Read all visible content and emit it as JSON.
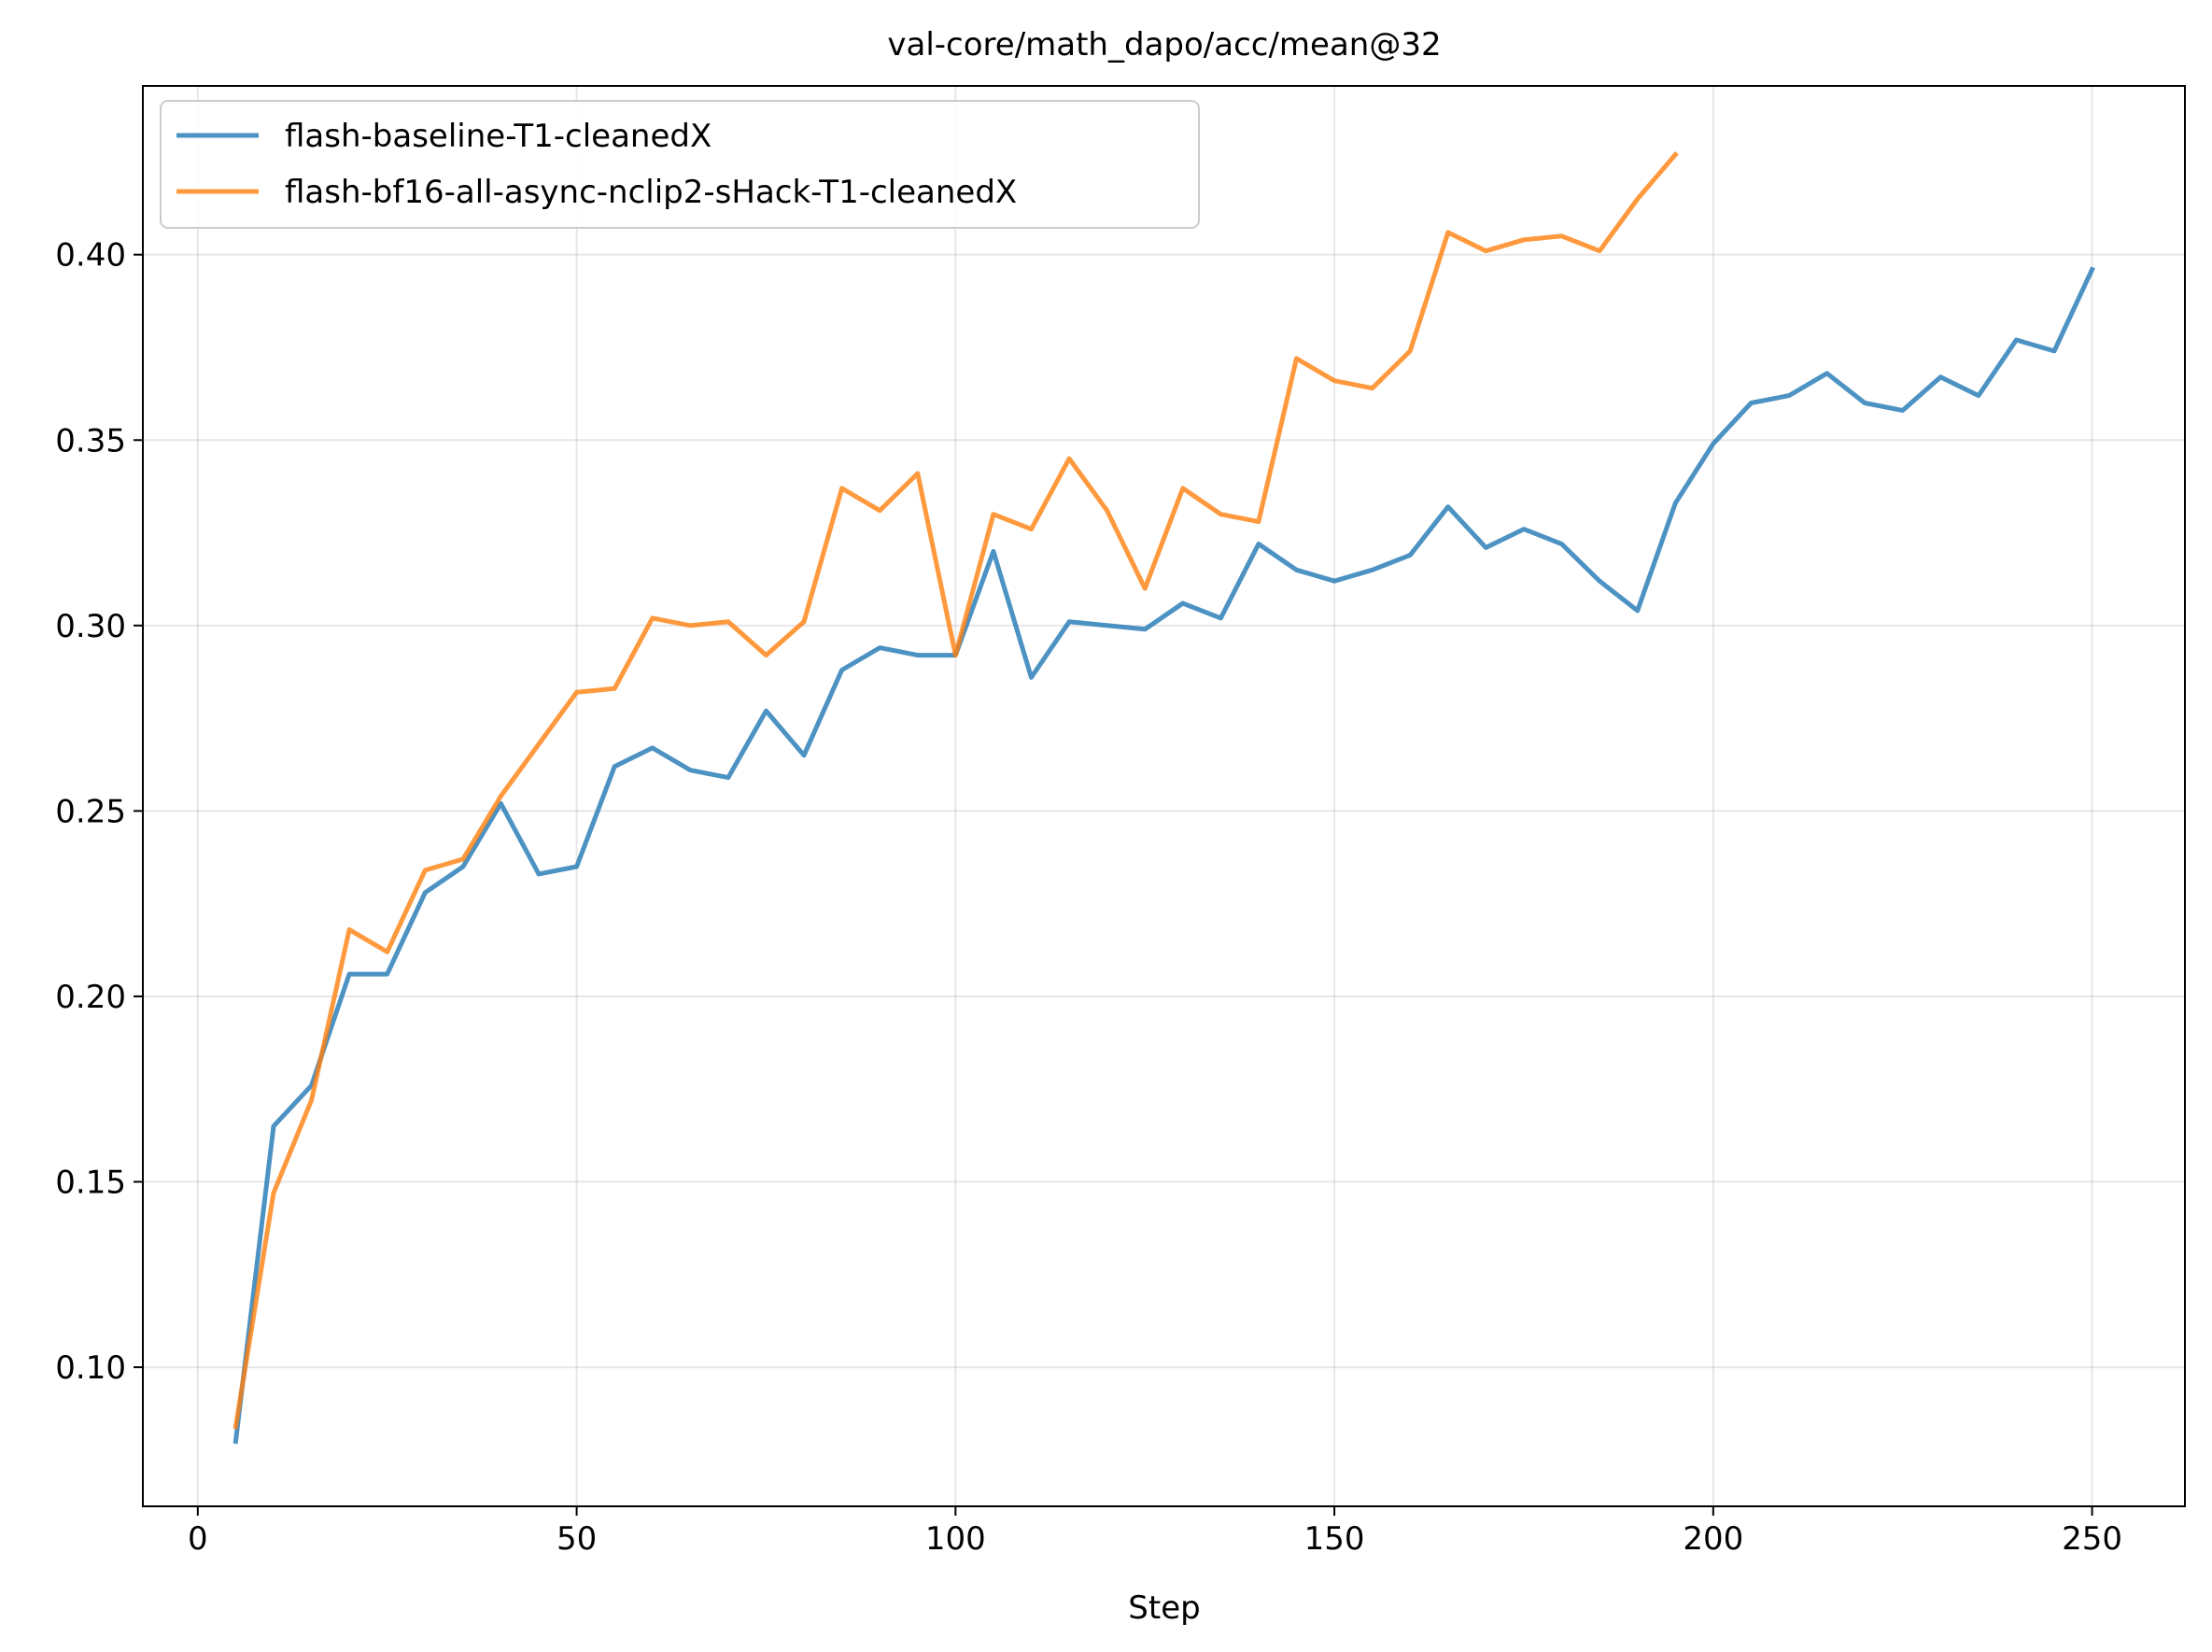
{
  "chart_data": {
    "type": "line",
    "title": "val-core/math_dapo/acc/mean@32",
    "xlabel": "Step",
    "ylabel": "",
    "xlim": [
      -7.25,
      262.25
    ],
    "ylim": [
      0.0625,
      0.4455
    ],
    "xticks": [
      0,
      50,
      100,
      150,
      200,
      250
    ],
    "xtick_labels": [
      "0",
      "50",
      "100",
      "150",
      "200",
      "250"
    ],
    "yticks": [
      0.1,
      0.15,
      0.2,
      0.25,
      0.3,
      0.35,
      0.4
    ],
    "ytick_labels": [
      "0.10",
      "0.15",
      "0.20",
      "0.25",
      "0.30",
      "0.35",
      "0.40"
    ],
    "grid": true,
    "legend_position": "top-left",
    "series": [
      {
        "name": "flash-baseline-T1-cleanedX",
        "color": "#1f77b4",
        "x": [
          5,
          10,
          15,
          20,
          25,
          30,
          35,
          40,
          45,
          50,
          55,
          60,
          65,
          70,
          75,
          80,
          85,
          90,
          95,
          100,
          105,
          110,
          115,
          120,
          125,
          130,
          135,
          140,
          145,
          150,
          155,
          160,
          165,
          170,
          175,
          180,
          185,
          190,
          195,
          200,
          205,
          210,
          215,
          220,
          225,
          230,
          235,
          240,
          245,
          250
        ],
        "y": [
          0.08,
          0.165,
          0.176,
          0.206,
          0.206,
          0.228,
          0.235,
          0.252,
          0.233,
          0.235,
          0.262,
          0.267,
          0.261,
          0.259,
          0.277,
          0.265,
          0.288,
          0.294,
          0.292,
          0.292,
          0.32,
          0.286,
          0.301,
          0.3,
          0.299,
          0.306,
          0.302,
          0.322,
          0.315,
          0.312,
          0.315,
          0.319,
          0.332,
          0.321,
          0.326,
          0.322,
          0.312,
          0.304,
          0.333,
          0.349,
          0.36,
          0.362,
          0.368,
          0.36,
          0.358,
          0.367,
          0.362,
          0.377,
          0.374,
          0.396
        ]
      },
      {
        "name": "flash-bf16-all-async-nclip2-sHack-T1-cleanedX",
        "color": "#ff7f0e",
        "x": [
          5,
          10,
          15,
          20,
          25,
          30,
          35,
          40,
          45,
          50,
          55,
          60,
          65,
          70,
          75,
          80,
          85,
          90,
          95,
          100,
          105,
          110,
          115,
          120,
          125,
          130,
          135,
          140,
          145,
          150,
          155,
          160,
          165,
          170,
          175,
          180,
          185,
          190,
          195
        ],
        "y": [
          0.084,
          0.147,
          0.172,
          0.218,
          0.212,
          0.234,
          0.237,
          0.254,
          0.268,
          0.282,
          0.283,
          0.302,
          0.3,
          0.301,
          0.292,
          0.301,
          0.337,
          0.331,
          0.341,
          0.292,
          0.33,
          0.326,
          0.345,
          0.331,
          0.31,
          0.337,
          0.33,
          0.328,
          0.372,
          0.366,
          0.364,
          0.374,
          0.406,
          0.401,
          0.404,
          0.405,
          0.401,
          0.415,
          0.427
        ]
      }
    ]
  }
}
